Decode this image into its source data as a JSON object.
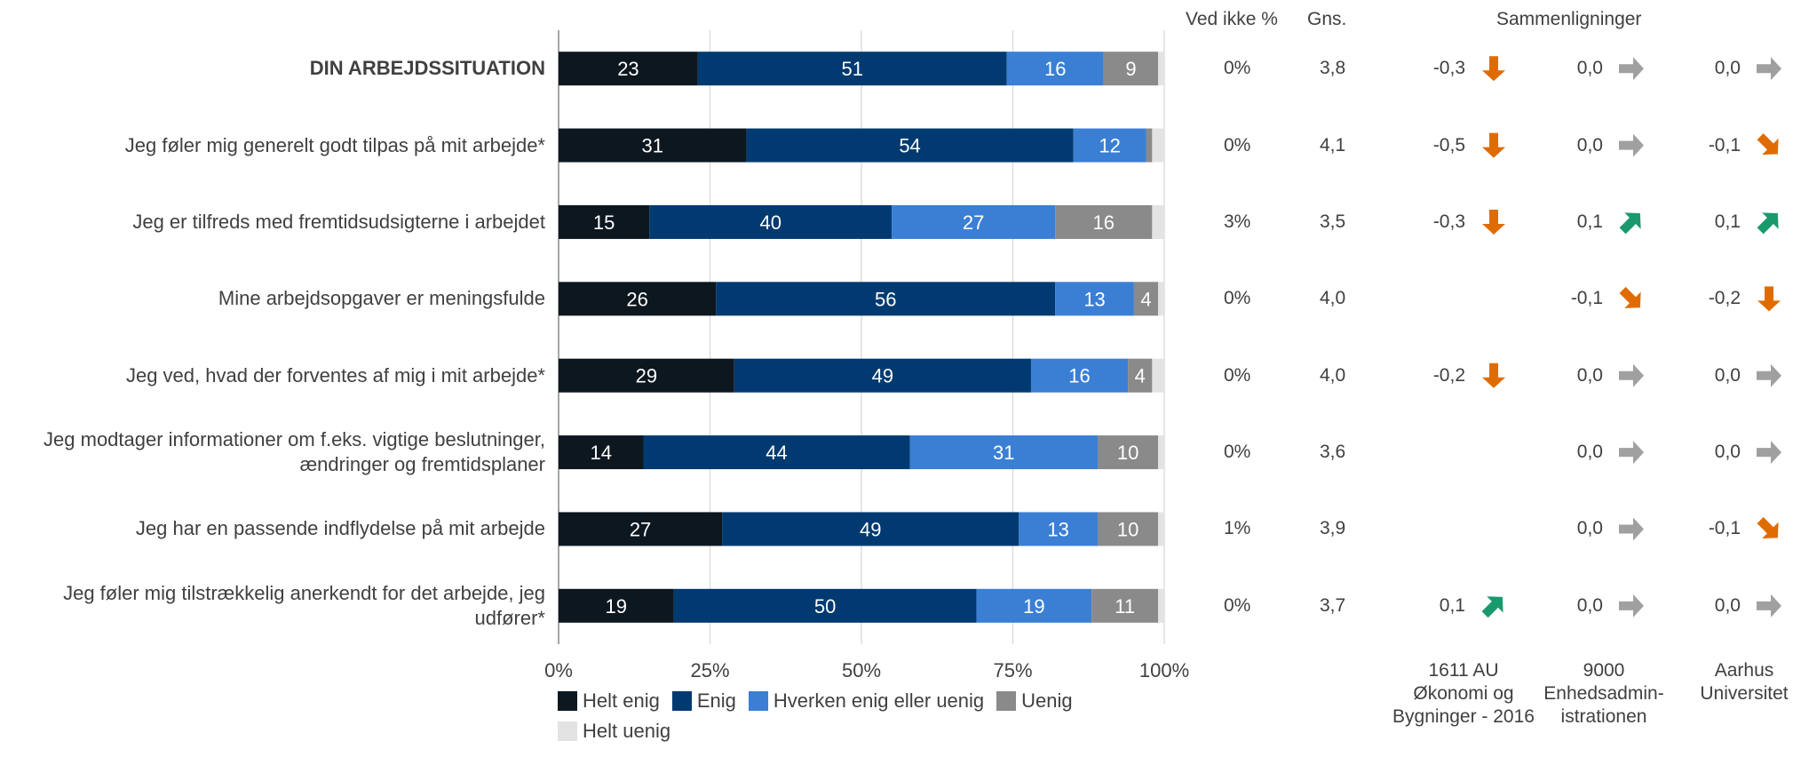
{
  "chart_data": {
    "type": "bar",
    "stacked": true,
    "orientation": "horizontal",
    "categories": [
      "DIN ARBEJDSSITUATION",
      "Jeg føler mig generelt godt tilpas på mit arbejde*",
      "Jeg er tilfreds med fremtidsudsigterne i arbejdet",
      "Mine arbejdsopgaver er meningsfulde",
      "Jeg ved, hvad der forventes af mig i mit arbejde*",
      "Jeg modtager informationer om f.eks. vigtige beslutninger, ændringer og fremtidsplaner",
      "Jeg har en passende indflydelse på mit arbejde",
      "Jeg føler mig tilstrækkelig anerkendt for det arbejde, jeg udfører*"
    ],
    "series": [
      {
        "name": "Helt enig",
        "color": "#0d1720",
        "values": [
          23,
          31,
          15,
          26,
          29,
          14,
          27,
          19
        ]
      },
      {
        "name": "Enig",
        "color": "#003a70",
        "values": [
          51,
          54,
          40,
          56,
          49,
          44,
          49,
          50
        ]
      },
      {
        "name": "Hverken enig eller uenig",
        "color": "#3a7fd4",
        "values": [
          16,
          12,
          27,
          13,
          16,
          31,
          13,
          19
        ]
      },
      {
        "name": "Uenig",
        "color": "#8a8a8a",
        "values": [
          9,
          1,
          16,
          4,
          4,
          10,
          10,
          11
        ]
      },
      {
        "name": "Helt uenig",
        "color": "#e3e3e3",
        "values": [
          1,
          2,
          2,
          1,
          2,
          1,
          1,
          1
        ]
      }
    ],
    "label_threshold": 3,
    "xticks": [
      "0%",
      "25%",
      "50%",
      "75%",
      "100%"
    ],
    "xlim": [
      0,
      100
    ],
    "grid": true,
    "legend_position": "bottom"
  },
  "table": {
    "headers": {
      "ved_ikke": "Ved ikke %",
      "gns": "Gns.",
      "sammenligninger": "Sammenligninger"
    },
    "rows": [
      {
        "ved_ikke": "0%",
        "gns": "3,8",
        "cmp": [
          {
            "value": "-0,3",
            "dir": "down"
          },
          {
            "value": "0,0",
            "dir": "right"
          },
          {
            "value": "0,0",
            "dir": "right"
          }
        ]
      },
      {
        "ved_ikke": "0%",
        "gns": "4,1",
        "cmp": [
          {
            "value": "-0,5",
            "dir": "down"
          },
          {
            "value": "0,0",
            "dir": "right"
          },
          {
            "value": "-0,1",
            "dir": "down-right"
          }
        ]
      },
      {
        "ved_ikke": "3%",
        "gns": "3,5",
        "cmp": [
          {
            "value": "-0,3",
            "dir": "down"
          },
          {
            "value": "0,1",
            "dir": "up-right"
          },
          {
            "value": "0,1",
            "dir": "up-right"
          }
        ]
      },
      {
        "ved_ikke": "0%",
        "gns": "4,0",
        "cmp": [
          {
            "value": "",
            "dir": ""
          },
          {
            "value": "-0,1",
            "dir": "down-right"
          },
          {
            "value": "-0,2",
            "dir": "down"
          }
        ]
      },
      {
        "ved_ikke": "0%",
        "gns": "4,0",
        "cmp": [
          {
            "value": "-0,2",
            "dir": "down"
          },
          {
            "value": "0,0",
            "dir": "right"
          },
          {
            "value": "0,0",
            "dir": "right"
          }
        ]
      },
      {
        "ved_ikke": "0%",
        "gns": "3,6",
        "cmp": [
          {
            "value": "",
            "dir": ""
          },
          {
            "value": "0,0",
            "dir": "right"
          },
          {
            "value": "0,0",
            "dir": "right"
          }
        ]
      },
      {
        "ved_ikke": "1%",
        "gns": "3,9",
        "cmp": [
          {
            "value": "",
            "dir": ""
          },
          {
            "value": "0,0",
            "dir": "right"
          },
          {
            "value": "-0,1",
            "dir": "down-right"
          }
        ]
      },
      {
        "ved_ikke": "0%",
        "gns": "3,7",
        "cmp": [
          {
            "value": "0,1",
            "dir": "up-right"
          },
          {
            "value": "0,0",
            "dir": "right"
          },
          {
            "value": "0,0",
            "dir": "right"
          }
        ]
      }
    ],
    "comparison_groups": [
      "1611 AU Økonomi og Bygninger - 2016",
      "9000 Enhedsadmin-istrationen",
      "Aarhus Universitet"
    ]
  },
  "colors": {
    "arrow_down": "#e06c00",
    "arrow_up": "#1a9a6c",
    "arrow_neutral": "#a0a0a0"
  },
  "icons": {
    "down": "arrow-down-icon",
    "down-right": "arrow-down-right-icon",
    "up-right": "arrow-up-right-icon",
    "right": "arrow-right-icon"
  }
}
